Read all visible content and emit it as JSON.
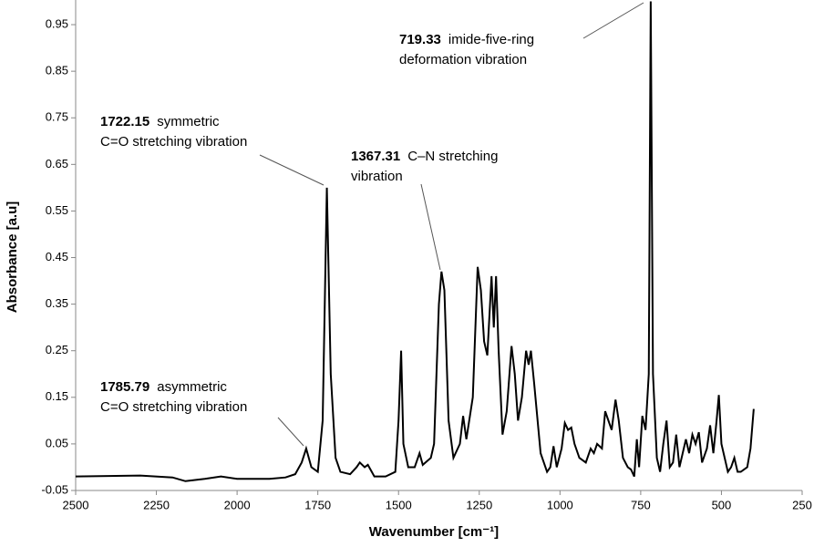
{
  "chart_data": {
    "type": "line",
    "x_label": "Wavenumber [cm⁻¹]",
    "y_label": "Absorbance [a.u]",
    "xlim": [
      2500,
      250
    ],
    "xticks": [
      2500,
      2250,
      2000,
      1750,
      1500,
      1250,
      1000,
      750,
      500,
      250
    ],
    "ylim": [
      -0.05,
      1.0
    ],
    "yticks": [
      -0.05,
      0.05,
      0.15,
      0.25,
      0.35,
      0.45,
      0.55,
      0.65,
      0.75,
      0.85,
      0.95
    ],
    "series": [
      {
        "color": "#000000",
        "x": [
          2500,
          2300,
          2200,
          2160,
          2100,
          2050,
          2000,
          1900,
          1850,
          1820,
          1800,
          1786,
          1770,
          1750,
          1735,
          1722,
          1710,
          1695,
          1680,
          1650,
          1630,
          1620,
          1605,
          1595,
          1575,
          1540,
          1510,
          1500,
          1492,
          1485,
          1470,
          1450,
          1435,
          1425,
          1400,
          1390,
          1375,
          1367,
          1358,
          1345,
          1330,
          1310,
          1300,
          1290,
          1270,
          1255,
          1245,
          1235,
          1225,
          1212,
          1205,
          1198,
          1190,
          1178,
          1165,
          1150,
          1140,
          1130,
          1118,
          1105,
          1097,
          1090,
          1080,
          1060,
          1040,
          1030,
          1020,
          1010,
          995,
          985,
          975,
          965,
          955,
          940,
          920,
          905,
          895,
          885,
          870,
          860,
          850,
          840,
          828,
          818,
          805,
          790,
          780,
          770,
          762,
          755,
          745,
          735,
          725,
          719,
          712,
          700,
          690,
          680,
          670,
          660,
          650,
          640,
          630,
          620,
          610,
          600,
          590,
          580,
          570,
          560,
          545,
          535,
          525,
          515,
          508,
          500,
          490,
          480,
          470,
          460,
          450,
          440,
          420,
          410,
          400
        ],
        "values": [
          -0.02,
          -0.018,
          -0.022,
          -0.03,
          -0.025,
          -0.02,
          -0.025,
          -0.025,
          -0.022,
          -0.015,
          0.01,
          0.04,
          0.0,
          -0.01,
          0.1,
          0.6,
          0.2,
          0.02,
          -0.01,
          -0.015,
          0.0,
          0.01,
          0.0,
          0.005,
          -0.02,
          -0.02,
          -0.01,
          0.1,
          0.25,
          0.05,
          0.0,
          0.0,
          0.03,
          0.005,
          0.02,
          0.05,
          0.35,
          0.42,
          0.38,
          0.1,
          0.02,
          0.05,
          0.11,
          0.06,
          0.15,
          0.43,
          0.38,
          0.27,
          0.24,
          0.41,
          0.3,
          0.41,
          0.25,
          0.07,
          0.12,
          0.26,
          0.2,
          0.1,
          0.15,
          0.25,
          0.22,
          0.25,
          0.18,
          0.03,
          -0.01,
          0.0,
          0.045,
          0.0,
          0.04,
          0.095,
          0.08,
          0.085,
          0.05,
          0.02,
          0.01,
          0.04,
          0.03,
          0.05,
          0.04,
          0.12,
          0.1,
          0.08,
          0.145,
          0.1,
          0.02,
          0.0,
          -0.005,
          -0.02,
          0.06,
          0.0,
          0.11,
          0.08,
          0.2,
          1.0,
          0.2,
          0.02,
          -0.01,
          0.05,
          0.1,
          0.0,
          0.01,
          0.07,
          0.0,
          0.03,
          0.06,
          0.03,
          0.07,
          0.05,
          0.075,
          0.01,
          0.04,
          0.09,
          0.03,
          0.1,
          0.155,
          0.05,
          0.02,
          -0.01,
          0.0,
          0.02,
          -0.01,
          -0.01,
          0.0,
          0.04,
          0.125
        ]
      }
    ],
    "annotations": [
      {
        "label": "1785.79",
        "lines": [
          "asymmetric",
          "C=O stretching vibration"
        ]
      },
      {
        "label": "1722.15",
        "lines": [
          "symmetric",
          "C=O stretching vibration"
        ]
      },
      {
        "label": "1367.31",
        "lines": [
          "C–N stretching",
          "vibration"
        ]
      },
      {
        "label": "719.33",
        "lines": [
          "imide-five-ring",
          "deformation vibration"
        ]
      }
    ]
  }
}
